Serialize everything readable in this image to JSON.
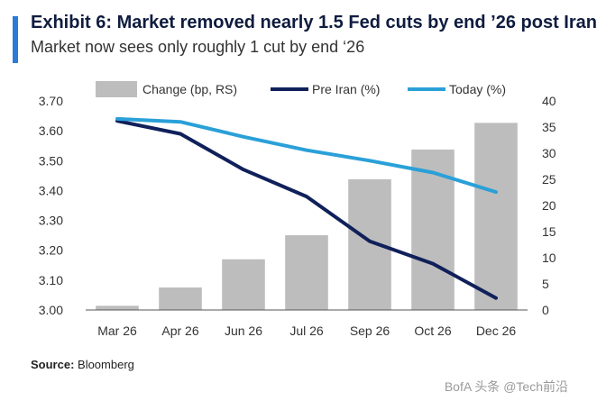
{
  "header": {
    "title": "Exhibit 6: Market removed nearly 1.5 Fed cuts by end ’26 post Iran",
    "subtitle": "Market now sees only roughly 1 cut by end ‘26"
  },
  "footer": {
    "source_label": "Source:",
    "source_value": " Bloomberg",
    "watermark": "BofA 头条 @Tech前沿"
  },
  "colors": {
    "bar": "#bdbdbd",
    "pre_iran": "#10205a",
    "today": "#2aa0d8"
  },
  "chart_data": {
    "type": "bar",
    "categories": [
      "Mar 26",
      "Apr 26",
      "Jun 26",
      "Jul 26",
      "Sep 26",
      "Oct 26",
      "Dec 26"
    ],
    "left_axis": {
      "ylim": [
        3.0,
        3.7
      ],
      "ticks": [
        "3.00",
        "3.10",
        "3.20",
        "3.30",
        "3.40",
        "3.50",
        "3.60",
        "3.70"
      ]
    },
    "right_axis": {
      "ylim": [
        0,
        40
      ],
      "ticks": [
        "0",
        "5",
        "10",
        "15",
        "20",
        "25",
        "30",
        "35",
        "40"
      ]
    },
    "series": [
      {
        "name": "Change (bp, RS)",
        "type": "bar",
        "axis": "right",
        "values": [
          0.8,
          4.3,
          9.7,
          14.3,
          25.0,
          30.7,
          35.8
        ]
      },
      {
        "name": "Pre Iran (%)",
        "type": "line",
        "axis": "left",
        "values": [
          3.633,
          3.59,
          3.47,
          3.38,
          3.23,
          3.155,
          3.04
        ]
      },
      {
        "name": "Today (%)",
        "type": "line",
        "axis": "left",
        "values": [
          3.64,
          3.63,
          3.58,
          3.535,
          3.5,
          3.46,
          3.395
        ]
      }
    ],
    "legend": "top"
  }
}
